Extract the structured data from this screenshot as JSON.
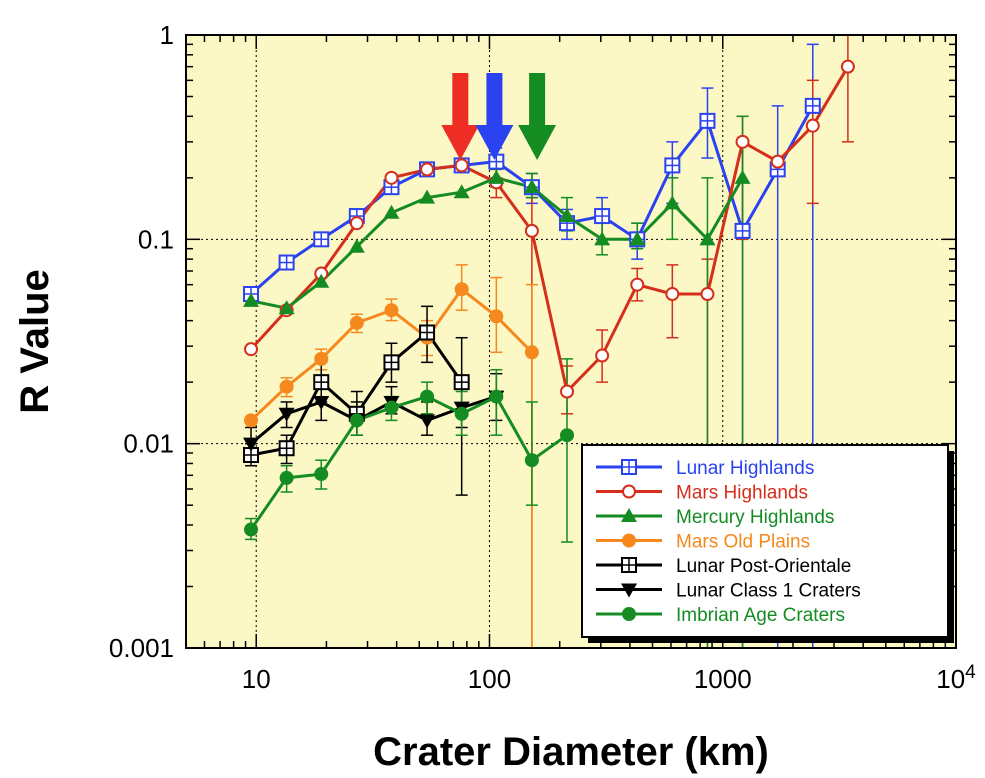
{
  "chart_data": {
    "type": "line",
    "xlabel": "Crater Diameter (km)",
    "ylabel": "R Value",
    "x_scale": "log",
    "y_scale": "log",
    "xlim": [
      5,
      10000
    ],
    "ylim": [
      0.001,
      1
    ],
    "x_ticks": [
      {
        "value": 10,
        "label": "10"
      },
      {
        "value": 100,
        "label": "100"
      },
      {
        "value": 1000,
        "label": "1000"
      },
      {
        "value": 10000,
        "label": "10",
        "sup": "4"
      }
    ],
    "y_ticks": [
      {
        "value": 0.001,
        "label": "0.001"
      },
      {
        "value": 0.01,
        "label": "0.01"
      },
      {
        "value": 0.1,
        "label": "0.1"
      },
      {
        "value": 1,
        "label": "1"
      }
    ],
    "grid": true,
    "background": "#fbf8c6",
    "legend_position": "bottom-right",
    "arrows": [
      {
        "x": 75,
        "color": "#ee2d24"
      },
      {
        "x": 105,
        "color": "#2a42f0"
      },
      {
        "x": 160,
        "color": "#148c22"
      }
    ],
    "series": [
      {
        "name": "Lunar Highlands",
        "color": "#2a42f0",
        "marker": "square-plus",
        "x": [
          9.5,
          13.5,
          19,
          27,
          38,
          54,
          76,
          107,
          152,
          215,
          304,
          430,
          608,
          860,
          1216,
          1720,
          2432
        ],
        "y": [
          0.054,
          0.077,
          0.1,
          0.13,
          0.18,
          0.22,
          0.23,
          0.24,
          0.18,
          0.12,
          0.13,
          0.1,
          0.23,
          0.38,
          0.11,
          0.22,
          0.45
        ],
        "err_low": [
          null,
          null,
          null,
          null,
          null,
          null,
          null,
          0.2,
          0.15,
          0.1,
          0.1,
          0.08,
          0.15,
          0.25,
          0.001,
          0.001,
          0.001
        ],
        "err_high": [
          null,
          null,
          null,
          null,
          null,
          null,
          null,
          0.28,
          0.21,
          0.14,
          0.16,
          0.12,
          0.3,
          0.55,
          0.3,
          0.45,
          0.9
        ]
      },
      {
        "name": "Mars Highlands",
        "color": "#d52f1c",
        "marker": "open-circle",
        "x": [
          9.5,
          13.5,
          19,
          27,
          38,
          54,
          76,
          107,
          152,
          215,
          304,
          430,
          608,
          860,
          1216,
          1720,
          2432,
          3440
        ],
        "y": [
          0.029,
          0.045,
          0.068,
          0.12,
          0.2,
          0.22,
          0.23,
          0.19,
          0.11,
          0.018,
          0.027,
          0.06,
          0.054,
          0.054,
          0.3,
          0.24,
          0.36,
          0.7
        ],
        "err_low": [
          null,
          null,
          null,
          null,
          null,
          null,
          null,
          0.16,
          0.001,
          0.014,
          0.02,
          0.05,
          0.033,
          0.001,
          0.1,
          null,
          0.15,
          0.3
        ],
        "err_high": [
          null,
          null,
          null,
          null,
          null,
          null,
          null,
          0.22,
          0.16,
          0.024,
          0.036,
          0.072,
          0.075,
          0.08,
          0.4,
          null,
          0.6,
          1.0
        ]
      },
      {
        "name": "Mercury Highlands",
        "color": "#148c22",
        "marker": "triangle",
        "x": [
          9.5,
          13.5,
          19,
          27,
          38,
          54,
          76,
          107,
          152,
          215,
          304,
          430,
          608,
          860,
          1216
        ],
        "y": [
          0.05,
          0.046,
          0.062,
          0.092,
          0.135,
          0.16,
          0.17,
          0.2,
          0.18,
          0.13,
          0.1,
          0.1,
          0.15,
          0.1,
          0.2
        ],
        "err_low": [
          null,
          null,
          null,
          null,
          null,
          null,
          null,
          0.18,
          0.16,
          0.11,
          0.084,
          0.09,
          0.1,
          0.001,
          0.001
        ],
        "err_high": [
          null,
          null,
          null,
          null,
          null,
          null,
          null,
          0.22,
          0.21,
          0.16,
          0.12,
          0.12,
          0.2,
          0.2,
          0.4
        ]
      },
      {
        "name": "Mars Old Plains",
        "color": "#f5891d",
        "marker": "filled-circle",
        "x": [
          9.5,
          13.5,
          19,
          27,
          38,
          54,
          76,
          107,
          152
        ],
        "y": [
          0.013,
          0.019,
          0.026,
          0.039,
          0.045,
          0.033,
          0.057,
          0.042,
          0.028
        ],
        "err_low": [
          null,
          0.017,
          0.023,
          0.035,
          0.04,
          0.027,
          0.045,
          0.028,
          0.001
        ],
        "err_high": [
          null,
          0.021,
          0.029,
          0.043,
          0.051,
          0.04,
          0.075,
          0.065,
          0.06
        ]
      },
      {
        "name": "Lunar Post-Orientale",
        "color": "#000000",
        "marker": "square-plus",
        "x": [
          9.5,
          13.5,
          19,
          27,
          38,
          54,
          76
        ],
        "y": [
          0.0088,
          0.0095,
          0.02,
          0.014,
          0.025,
          0.035,
          0.02
        ],
        "err_low": [
          0.0078,
          0.008,
          0.016,
          0.011,
          0.02,
          0.025,
          0.0056
        ],
        "err_high": [
          0.01,
          0.011,
          0.025,
          0.018,
          0.031,
          0.047,
          0.033
        ]
      },
      {
        "name": "Lunar Class 1 Craters",
        "color": "#000000",
        "marker": "down-triangle",
        "x": [
          9.5,
          13.5,
          19,
          27,
          38,
          54,
          76,
          107
        ],
        "y": [
          0.01,
          0.014,
          0.016,
          0.013,
          0.016,
          0.013,
          0.015,
          0.017
        ],
        "err_low": [
          0.0085,
          0.012,
          0.013,
          0.011,
          0.014,
          0.011,
          0.012,
          0.013
        ],
        "err_high": [
          0.012,
          0.016,
          0.019,
          0.016,
          0.019,
          0.016,
          0.019,
          0.022
        ]
      },
      {
        "name": "Imbrian Age Craters",
        "color": "#148c22",
        "marker": "filled-circle",
        "x": [
          9.5,
          13.5,
          19,
          27,
          38,
          54,
          76,
          107,
          152,
          215
        ],
        "y": [
          0.0038,
          0.0068,
          0.0071,
          0.013,
          0.015,
          0.017,
          0.014,
          0.017,
          0.0083,
          0.011
        ],
        "err_low": [
          0.0034,
          0.0058,
          0.006,
          0.011,
          0.013,
          0.014,
          0.011,
          0.011,
          0.005,
          0.0033
        ],
        "err_high": [
          0.0043,
          0.0078,
          0.0083,
          0.015,
          0.017,
          0.02,
          0.018,
          0.023,
          0.016,
          0.026
        ]
      }
    ]
  }
}
